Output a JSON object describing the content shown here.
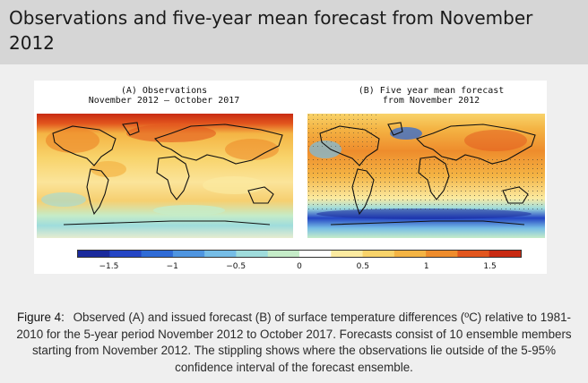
{
  "page": {
    "title": "Observations and five-year mean forecast from November 2012"
  },
  "figure": {
    "panel_a": {
      "title_line1": "(A) Observations",
      "title_line2": "November 2012 – October 2017"
    },
    "panel_b": {
      "title_line1": "(B) Five year mean forecast",
      "title_line2": "from November 2012"
    },
    "colorbar": {
      "min": -1.75,
      "max": 1.75,
      "ticks": [
        "−1.5",
        "−1",
        "−0.5",
        "0",
        "0.5",
        "1",
        "1.5"
      ],
      "tick_values": [
        -1.5,
        -1,
        -0.5,
        0,
        0.5,
        1,
        1.5
      ],
      "colors": [
        "#1a2a9c",
        "#2445c4",
        "#2f6bd6",
        "#4f95e0",
        "#76bde6",
        "#9fdcdc",
        "#c5ecc8",
        "#ffffff",
        "#fbeaa0",
        "#f8d36a",
        "#f4b444",
        "#ee8c2c",
        "#e2561e",
        "#c82a12"
      ]
    }
  },
  "caption": {
    "label": "Figure 4:",
    "text": "Observed (A) and issued forecast (B) of surface temperature differences (ºC) relative to 1981-2010 for the 5-year period November 2012 to October 2017. Forecasts consist of 10 ensemble members starting from November 2012. The stippling shows where the observations lie outside of the 5-95% confidence interval of the forecast ensemble."
  }
}
